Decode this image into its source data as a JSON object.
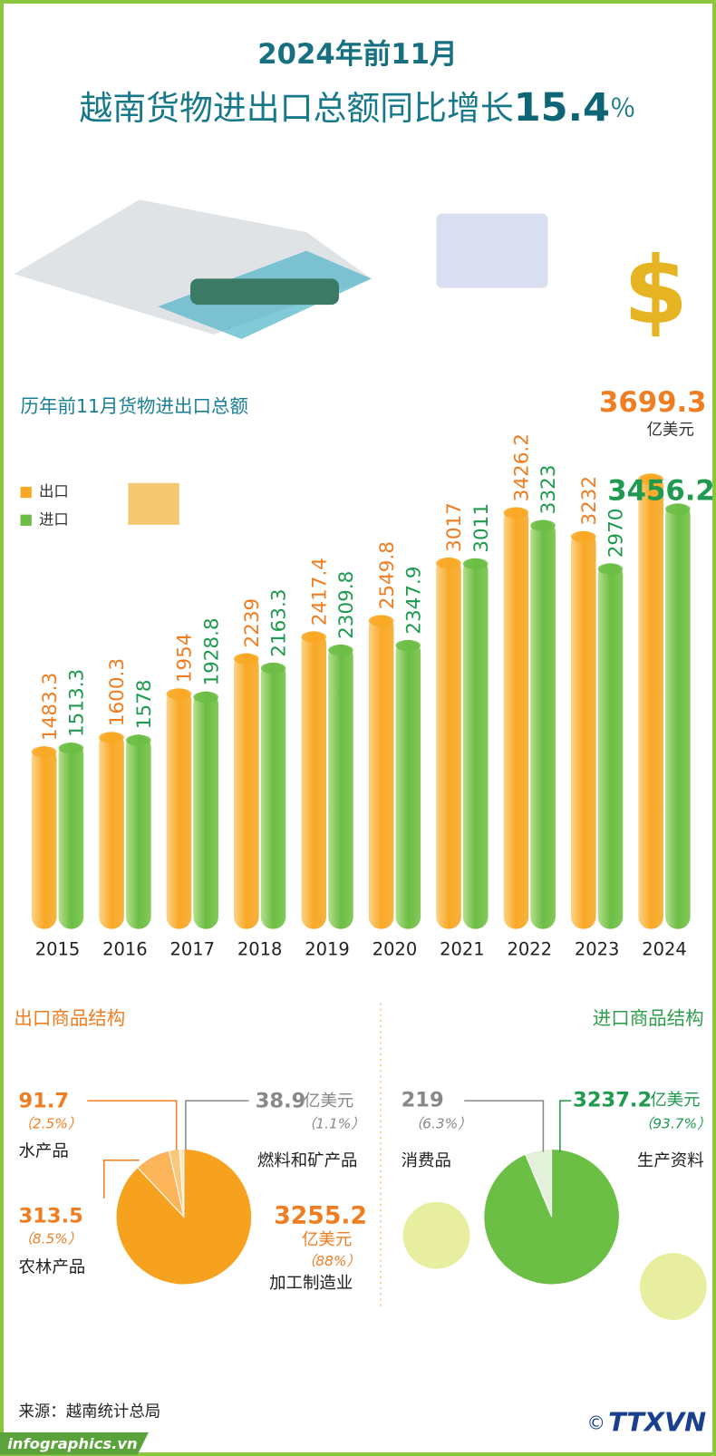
{
  "header": {
    "line1": "2024年前11月",
    "line2": "越南货物进出口总额同比增长",
    "growth": "15.4",
    "growth_unit": "％"
  },
  "chart_data": [
    {
      "type": "bar",
      "title": "历年前11月货物进出口总额",
      "unit": "亿美元",
      "categories": [
        "2015",
        "2016",
        "2017",
        "2018",
        "2019",
        "2020",
        "2021",
        "2022",
        "2023",
        "2024"
      ],
      "series": [
        {
          "name": "出口",
          "color": "#f9a825",
          "label_color": "#ef7d22",
          "values": [
            1483.3,
            1600.3,
            1954,
            2239,
            2417.4,
            2549.8,
            3017,
            3426.2,
            3232,
            3699.3
          ]
        },
        {
          "name": "进口",
          "color": "#6cbd45",
          "label_color": "#1f9a4f",
          "values": [
            1513.3,
            1578,
            1928.8,
            2163.3,
            2309.8,
            2347.9,
            3011,
            3323,
            2970,
            3456.2
          ]
        }
      ],
      "ylim": [
        0,
        4000
      ]
    },
    {
      "type": "pie",
      "title": "出口商品结构",
      "unit": "亿美元",
      "categories": [
        "燃料和矿产品",
        "水产品",
        "农林产品",
        "加工制造业"
      ],
      "values": [
        38.9,
        91.7,
        313.5,
        3255.2
      ],
      "share_labels": [
        "（1.1%）",
        "（2.5%）",
        "（8.5%）",
        "（88%）"
      ],
      "colors": [
        "#fde6bd",
        "#fbc77a",
        "#fbb45a",
        "#f7a21f"
      ]
    },
    {
      "type": "pie",
      "title": "进口商品结构",
      "unit": "亿美元",
      "categories": [
        "消费品",
        "生产资料"
      ],
      "values": [
        219,
        3237.2
      ],
      "share_labels": [
        "（6.3%）",
        "（93.7%）"
      ],
      "colors": [
        "#e4f1da",
        "#6cbf45"
      ]
    }
  ],
  "footer": {
    "source": "来源：越南统计总局",
    "site": "infographics.vn",
    "copyright": "©",
    "logo": "TTXVN"
  }
}
